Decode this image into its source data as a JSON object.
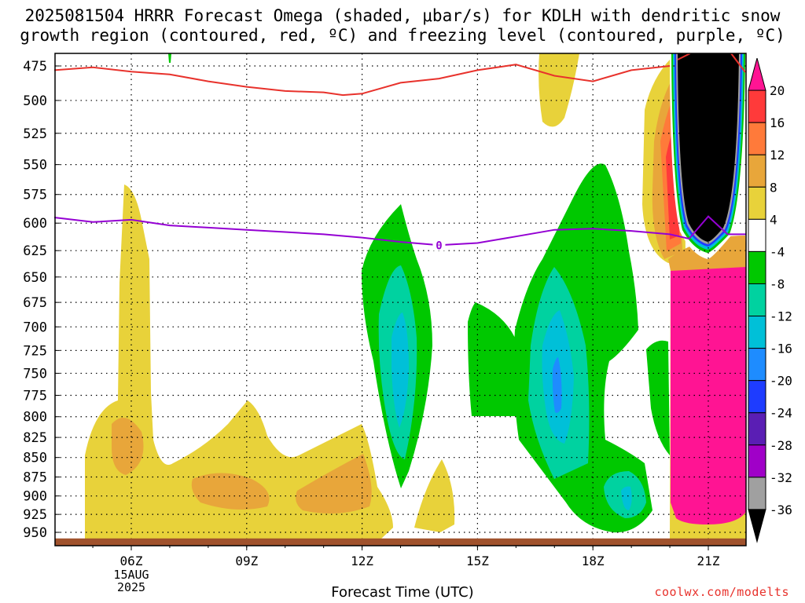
{
  "title": {
    "line1": "2025081504 HRRR Forecast Omega (shaded, μbar/s) for KDLH with dendritic snow",
    "line2": "growth region (contoured, red, ºC) and freezing level (contoured, purple, ºC)"
  },
  "credit": "coolwx.com/modelts",
  "chart_data": {
    "type": "heatmap",
    "title": "2025081504 HRRR Forecast Omega (shaded, μbar/s) for KDLH with dendritic snow growth region (contoured, red, ºC) and freezing level (contoured, purple, ºC)",
    "xlabel": "Forecast Time (UTC)",
    "ylabel": "",
    "x_ticks": [
      "06Z",
      "09Z",
      "12Z",
      "15Z",
      "18Z",
      "21Z"
    ],
    "x_tick_sublabels": [
      "15AUG",
      "2025"
    ],
    "x_range": [
      4,
      22
    ],
    "y_ticks": [
      475,
      500,
      525,
      550,
      575,
      600,
      625,
      650,
      675,
      700,
      725,
      750,
      775,
      800,
      825,
      850,
      875,
      900,
      925,
      950
    ],
    "y_range": [
      955,
      470
    ],
    "grid": true,
    "colorbar": {
      "labels": [
        "20",
        "16",
        "12",
        "8",
        "4",
        "-4",
        "-8",
        "-12",
        "-16",
        "-20",
        "-24",
        "-28",
        "-32",
        "-36"
      ],
      "colors": [
        "#ff1493",
        "#ff3a3a",
        "#ff7a3a",
        "#e8a63a",
        "#e8d23a",
        "#ffffff",
        "#00c800",
        "#00d2a0",
        "#00c0d8",
        "#1e8cff",
        "#1e3cff",
        "#5a1eb4",
        "#a000c8",
        "#a0a0a0",
        "#000000"
      ]
    },
    "freezing_level_label": "0",
    "freezing_level": {
      "x": [
        4,
        5,
        6,
        7,
        8,
        9,
        10,
        11,
        12,
        13,
        14,
        15,
        16,
        17,
        18,
        19,
        20,
        20.5,
        21,
        21.5
      ],
      "p": [
        595,
        599,
        597,
        602,
        604,
        606,
        608,
        610,
        613,
        617,
        620,
        618,
        612,
        606,
        605,
        607,
        610,
        614,
        594,
        610
      ]
    },
    "dgz_contour": {
      "x": [
        4,
        5,
        6,
        7,
        8,
        9,
        10,
        11,
        11.5,
        12,
        13,
        14,
        15,
        16,
        17,
        18,
        19,
        20
      ],
      "p": [
        478,
        476,
        479,
        481,
        486,
        490,
        493,
        494,
        496,
        495,
        487,
        484,
        478,
        474,
        482,
        486,
        478,
        475
      ]
    },
    "surface_pressure": 962
  }
}
